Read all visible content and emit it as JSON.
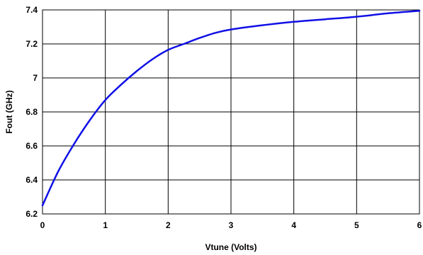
{
  "chart_data": {
    "type": "line",
    "xlabel": "Vtune (Volts)",
    "ylabel": "Fout (GHz)",
    "xlim": [
      0,
      6
    ],
    "ylim": [
      6.2,
      7.4
    ],
    "x_ticks": [
      "0",
      "1",
      "2",
      "3",
      "4",
      "5",
      "6"
    ],
    "y_ticks": [
      "6.2",
      "6.4",
      "6.6",
      "6.8",
      "7",
      "7.2",
      "7.4"
    ],
    "grid": true,
    "legend": "none",
    "series": [
      {
        "color": "#1010e6",
        "x": [
          0,
          0.25,
          0.5,
          0.75,
          1.0,
          1.25,
          1.5,
          1.75,
          2.0,
          2.25,
          2.5,
          2.75,
          3.0,
          3.5,
          4.0,
          4.5,
          5.0,
          5.5,
          6.0
        ],
        "y": [
          6.25,
          6.45,
          6.61,
          6.75,
          6.87,
          6.96,
          7.04,
          7.11,
          7.165,
          7.2,
          7.235,
          7.265,
          7.285,
          7.31,
          7.33,
          7.345,
          7.36,
          7.38,
          7.395
        ]
      }
    ]
  }
}
